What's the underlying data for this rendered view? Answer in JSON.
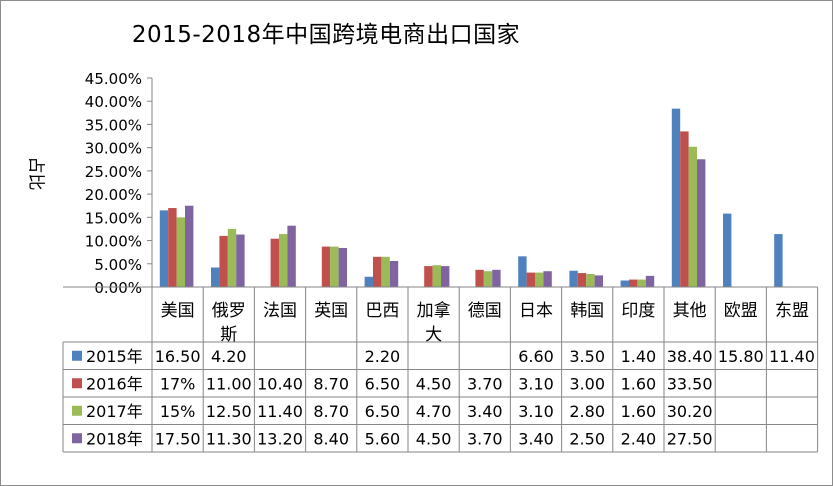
{
  "chart_data": {
    "type": "bar",
    "title": "2015-2018年中国跨境电商出口国家",
    "xlabel": "",
    "ylabel": "占比",
    "ylim": [
      0,
      45
    ],
    "yticks": [
      "0.00%",
      "5.00%",
      "10.00%",
      "15.00%",
      "20.00%",
      "25.00%",
      "30.00%",
      "35.00%",
      "40.00%",
      "45.00%"
    ],
    "grid": false,
    "legend": "data-table-left",
    "categories": [
      "美国",
      "俄罗斯",
      "法国",
      "英国",
      "巴西",
      "加拿大",
      "德国",
      "日本",
      "韩国",
      "印度",
      "其他",
      "欧盟",
      "东盟"
    ],
    "series": [
      {
        "name": "2015年",
        "color": "#4f81bd",
        "values": [
          16.5,
          4.2,
          null,
          null,
          2.2,
          null,
          null,
          6.6,
          3.5,
          1.4,
          38.4,
          15.8,
          11.4
        ],
        "table": [
          "16.50",
          "4.20",
          "",
          "",
          "2.20",
          "",
          "",
          "6.60",
          "3.50",
          "1.40",
          "38.40",
          "15.80",
          "11.40"
        ]
      },
      {
        "name": "2016年",
        "color": "#c0504d",
        "values": [
          17,
          11.0,
          10.4,
          8.7,
          6.5,
          4.5,
          3.7,
          3.1,
          3.0,
          1.6,
          33.5,
          null,
          null
        ],
        "table": [
          "17%",
          "11.00",
          "10.40",
          "8.70",
          "6.50",
          "4.50",
          "3.70",
          "3.10",
          "3.00",
          "1.60",
          "33.50",
          "",
          ""
        ]
      },
      {
        "name": "2017年",
        "color": "#9bbb59",
        "values": [
          15,
          12.5,
          11.4,
          8.7,
          6.5,
          4.7,
          3.4,
          3.1,
          2.8,
          1.6,
          30.2,
          null,
          null
        ],
        "table": [
          "15%",
          "12.50",
          "11.40",
          "8.70",
          "6.50",
          "4.70",
          "3.40",
          "3.10",
          "2.80",
          "1.60",
          "30.20",
          "",
          ""
        ]
      },
      {
        "name": "2018年",
        "color": "#8064a2",
        "values": [
          17.5,
          11.3,
          13.2,
          8.4,
          5.6,
          4.5,
          3.7,
          3.4,
          2.5,
          2.4,
          27.5,
          null,
          null
        ],
        "table": [
          "17.50",
          "11.30",
          "13.20",
          "8.40",
          "5.60",
          "4.50",
          "3.70",
          "3.40",
          "2.50",
          "2.40",
          "27.50",
          "",
          ""
        ]
      }
    ]
  }
}
